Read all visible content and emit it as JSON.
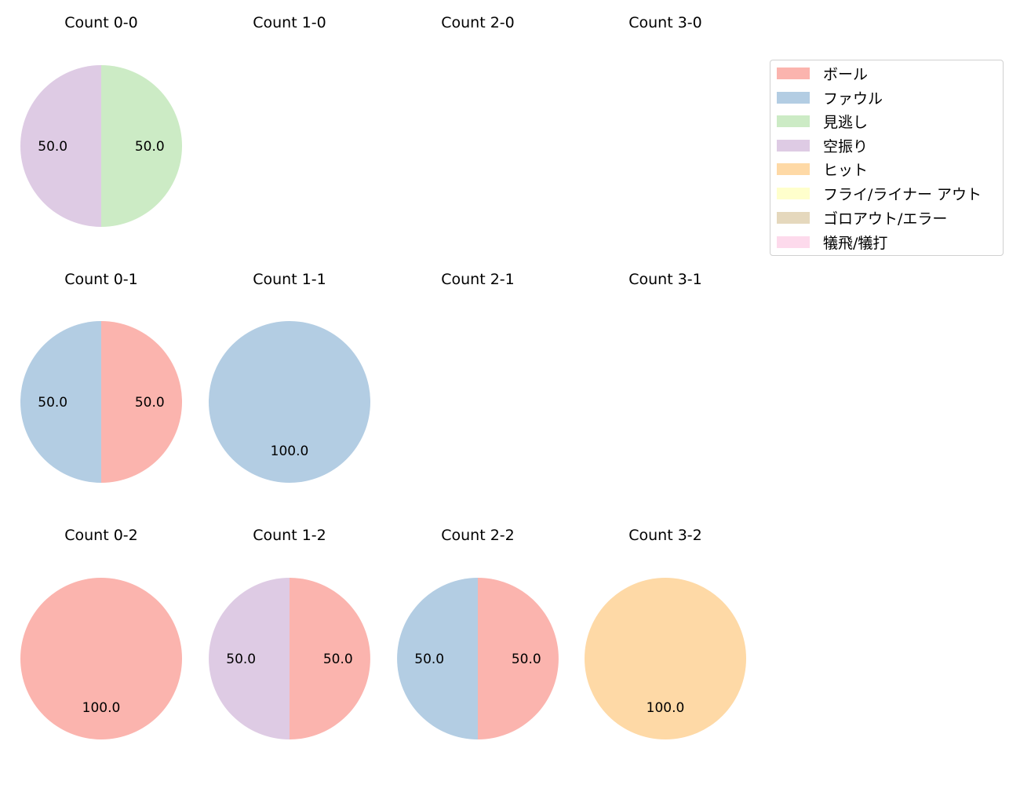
{
  "chart_data": {
    "type": "pie",
    "title": "",
    "grid": {
      "rows": 3,
      "cols": 4
    },
    "legend": {
      "position": "upper right",
      "entries": [
        {
          "label": "ボール",
          "color": "#fbb4ae"
        },
        {
          "label": "ファウル",
          "color": "#b3cde3"
        },
        {
          "label": "見逃し",
          "color": "#ccebc5"
        },
        {
          "label": "空振り",
          "color": "#decbe4"
        },
        {
          "label": "ヒット",
          "color": "#fed9a6"
        },
        {
          "label": "フライ/ライナー アウト",
          "color": "#ffffcc"
        },
        {
          "label": "ゴロアウト/エラー",
          "color": "#e5d8bd"
        },
        {
          "label": "犠飛/犠打",
          "color": "#fddaec"
        }
      ]
    },
    "charts": [
      {
        "title": "Count 0-0",
        "row": 0,
        "col": 0,
        "slices": [
          {
            "label": "見逃し",
            "value": 50.0
          },
          {
            "label": "空振り",
            "value": 50.0
          }
        ]
      },
      {
        "title": "Count 1-0",
        "row": 0,
        "col": 1,
        "slices": []
      },
      {
        "title": "Count 2-0",
        "row": 0,
        "col": 2,
        "slices": []
      },
      {
        "title": "Count 3-0",
        "row": 0,
        "col": 3,
        "slices": []
      },
      {
        "title": "Count 0-1",
        "row": 1,
        "col": 0,
        "slices": [
          {
            "label": "ボール",
            "value": 50.0
          },
          {
            "label": "ファウル",
            "value": 50.0
          }
        ]
      },
      {
        "title": "Count 1-1",
        "row": 1,
        "col": 1,
        "slices": [
          {
            "label": "ファウル",
            "value": 100.0
          }
        ]
      },
      {
        "title": "Count 2-1",
        "row": 1,
        "col": 2,
        "slices": []
      },
      {
        "title": "Count 3-1",
        "row": 1,
        "col": 3,
        "slices": []
      },
      {
        "title": "Count 0-2",
        "row": 2,
        "col": 0,
        "slices": [
          {
            "label": "ボール",
            "value": 100.0
          }
        ]
      },
      {
        "title": "Count 1-2",
        "row": 2,
        "col": 1,
        "slices": [
          {
            "label": "ボール",
            "value": 50.0
          },
          {
            "label": "空振り",
            "value": 50.0
          }
        ]
      },
      {
        "title": "Count 2-2",
        "row": 2,
        "col": 2,
        "slices": [
          {
            "label": "ボール",
            "value": 50.0
          },
          {
            "label": "ファウル",
            "value": 50.0
          }
        ]
      },
      {
        "title": "Count 3-2",
        "row": 2,
        "col": 3,
        "slices": [
          {
            "label": "ヒット",
            "value": 100.0
          }
        ]
      }
    ]
  }
}
